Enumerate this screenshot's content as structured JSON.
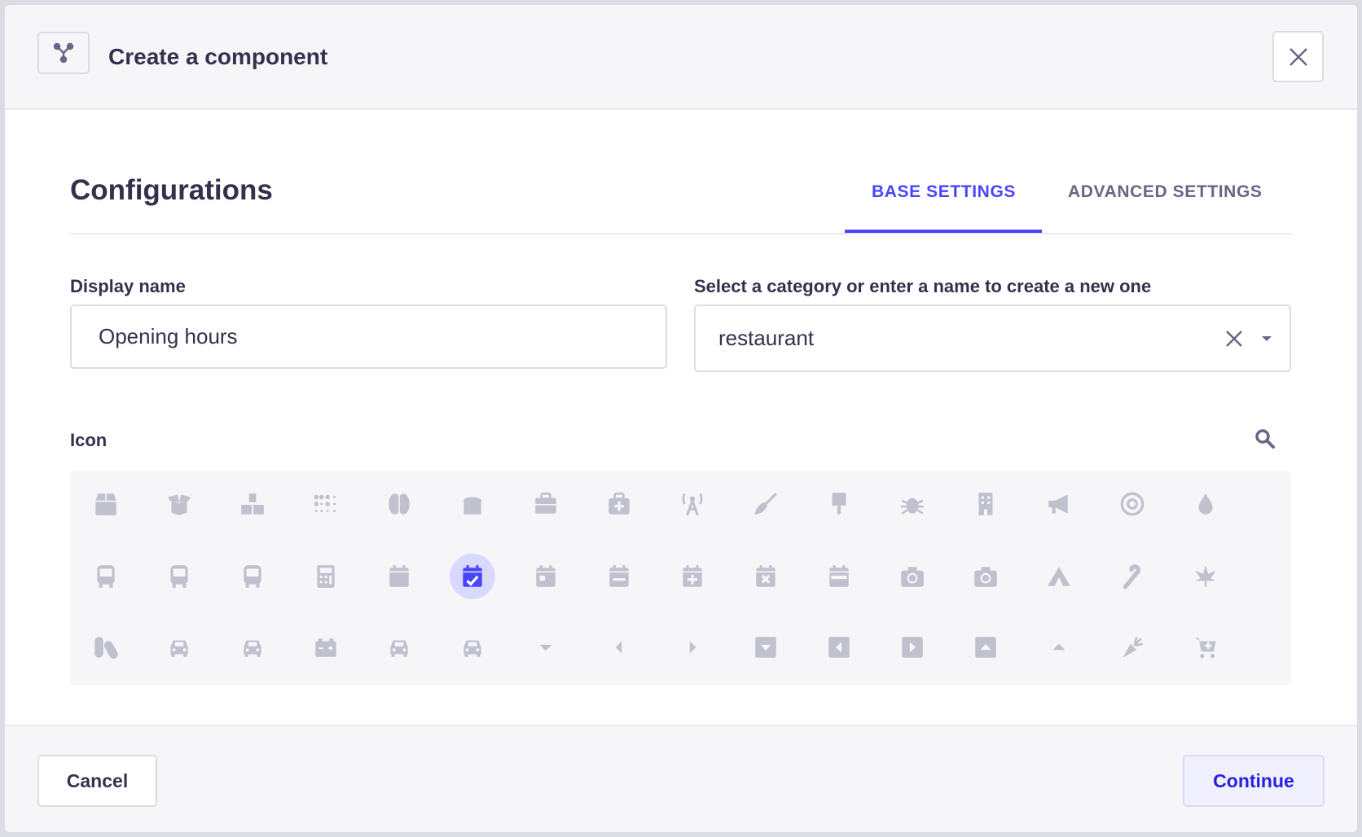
{
  "header": {
    "title": "Create a component",
    "icon": "component-icon",
    "close_icon": "close-icon"
  },
  "section": {
    "title": "Configurations"
  },
  "tabs": [
    {
      "label": "BASE SETTINGS",
      "active": true
    },
    {
      "label": "ADVANCED SETTINGS",
      "active": false
    }
  ],
  "form": {
    "display_name": {
      "label": "Display name",
      "value": "Opening hours"
    },
    "category": {
      "label": "Select a category or enter a name to create a new one",
      "value": "restaurant"
    },
    "icon_label": "Icon"
  },
  "icons": [
    "box",
    "box-open",
    "boxes",
    "braille",
    "brain",
    "bread-slice",
    "briefcase",
    "briefcase-medical",
    "broadcast-tower",
    "broom",
    "brush",
    "bug",
    "building",
    "bullhorn",
    "bullseye",
    "burn",
    "bus",
    "bus-alt",
    "business-time",
    "calculator",
    "calendar",
    "calendar-check",
    "calendar-day",
    "calendar-minus",
    "calendar-plus",
    "calendar-times",
    "calendar-week",
    "camera",
    "camera-retro",
    "campground",
    "candy-cane",
    "cannabis",
    "capsules",
    "car",
    "car-alt",
    "car-battery",
    "car-crash",
    "car-side",
    "caret-down",
    "caret-left",
    "caret-right",
    "caret-square-down",
    "caret-square-left",
    "caret-square-right",
    "caret-square-up",
    "caret-up",
    "carrot",
    "cart-plus"
  ],
  "selected_icon": "calendar-check",
  "footer": {
    "cancel": "Cancel",
    "continue": "Continue"
  },
  "colors": {
    "accent": "#4945ff",
    "icon": "#c0c0cf",
    "selected_bg": "#d9d8ff",
    "text": "#32324d"
  }
}
